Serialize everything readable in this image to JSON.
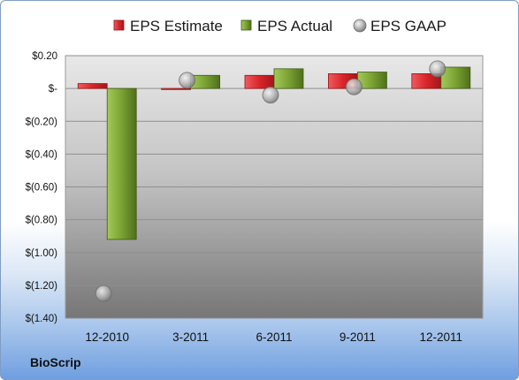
{
  "brand": "BioScrip",
  "chart_data": {
    "type": "bar",
    "categories": [
      "12-2010",
      "3-2011",
      "6-2011",
      "9-2011",
      "12-2011"
    ],
    "series": [
      {
        "name": "EPS Estimate",
        "kind": "bar",
        "color": "#d9252a",
        "values": [
          0.03,
          0.0,
          0.08,
          0.09,
          0.09
        ]
      },
      {
        "name": "EPS Actual",
        "kind": "bar",
        "color": "#7aa232",
        "values": [
          -0.92,
          0.08,
          0.12,
          0.1,
          0.13
        ]
      },
      {
        "name": "EPS GAAP",
        "kind": "marker",
        "color": "#b4b4b4",
        "values": [
          -1.25,
          0.05,
          -0.04,
          0.01,
          0.12
        ]
      }
    ],
    "ylim": [
      -1.4,
      0.2
    ],
    "yticks": [
      0.2,
      0,
      -0.2,
      -0.4,
      -0.6,
      -0.8,
      -1.0,
      -1.2,
      -1.4
    ],
    "ytick_labels": [
      "$0.20",
      "$-",
      "$(0.20)",
      "$(0.40)",
      "$(0.60)",
      "$(0.80)",
      "$(1.00)",
      "$(1.20)",
      "$(1.40)"
    ],
    "grid": true,
    "legend": "top"
  }
}
